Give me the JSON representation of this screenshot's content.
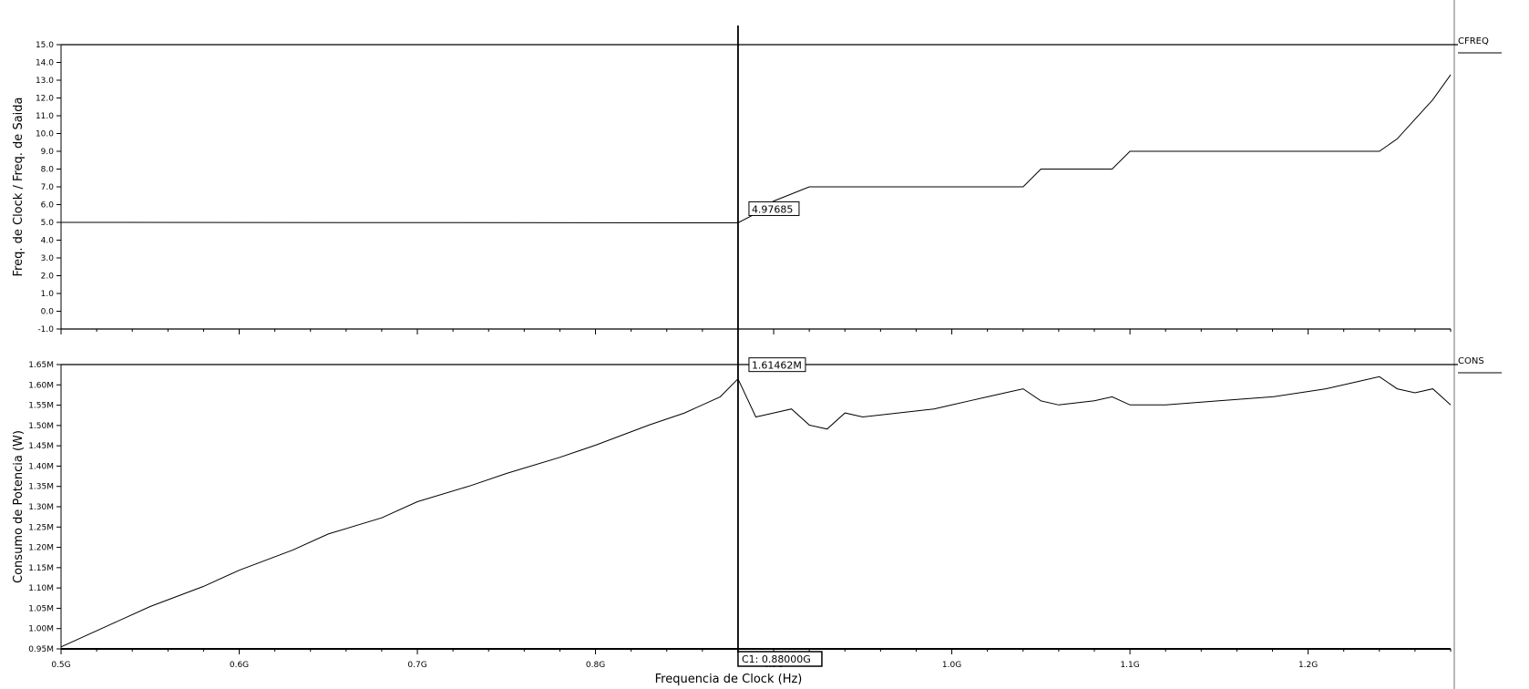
{
  "chart_data": [
    {
      "type": "line",
      "signal_name": "CFREQ",
      "ylabel": "Freq. de Clock / Freq. de Saida",
      "ylim": [
        -1.0,
        15.0
      ],
      "yticks": [
        "15.0",
        "14.0",
        "13.0",
        "12.0",
        "11.0",
        "10.0",
        "9.0",
        "8.0",
        "7.0",
        "6.0",
        "5.0",
        "4.0",
        "3.0",
        "2.0",
        "1.0",
        "0.0",
        "-1.0"
      ],
      "grid": false,
      "series": [
        {
          "x": [
            0.5,
            0.88,
            0.89,
            0.9,
            0.92,
            0.97,
            1.04,
            1.05,
            1.09,
            1.1,
            1.24,
            1.25,
            1.27,
            1.28
          ],
          "values": [
            5.0,
            4.97685,
            5.5,
            6.2,
            7.0,
            7.0,
            7.0,
            8.0,
            8.0,
            9.0,
            9.0,
            9.7,
            11.9,
            13.3
          ]
        }
      ],
      "marker_label": "4.97685"
    },
    {
      "type": "line",
      "signal_name": "CONS",
      "ylabel": "Consumo de Potencia (W)",
      "xlabel": "Frequencia de Clock (Hz)",
      "ylim": [
        0.945,
        1.65
      ],
      "yticks": [
        "1.65M",
        "1.60M",
        "1.55M",
        "1.50M",
        "1.45M",
        "1.40M",
        "1.35M",
        "1.30M",
        "1.25M",
        "1.20M",
        "1.15M",
        "1.10M",
        "1.05M",
        "1.00M",
        "0.95M"
      ],
      "xlim": [
        0.5,
        1.28
      ],
      "xticks": [
        "0.5G",
        "0.6G",
        "0.7G",
        "0.8G",
        "0.9G",
        "1.0G",
        "1.1G",
        "1.2G"
      ],
      "grid": false,
      "series": [
        {
          "x": [
            0.5,
            0.53,
            0.55,
            0.58,
            0.6,
            0.63,
            0.65,
            0.68,
            0.7,
            0.73,
            0.75,
            0.78,
            0.8,
            0.83,
            0.85,
            0.87,
            0.88,
            0.89,
            0.9,
            0.91,
            0.92,
            0.93,
            0.94,
            0.95,
            0.97,
            0.99,
            1.0,
            1.01,
            1.02,
            1.03,
            1.04,
            1.05,
            1.06,
            1.08,
            1.09,
            1.1,
            1.12,
            1.15,
            1.18,
            1.21,
            1.23,
            1.24,
            1.25,
            1.26,
            1.27,
            1.28
          ],
          "values": [
            0.95,
            1.01,
            1.05,
            1.1,
            1.14,
            1.19,
            1.23,
            1.27,
            1.31,
            1.35,
            1.38,
            1.42,
            1.45,
            1.5,
            1.53,
            1.57,
            1.61462,
            1.52,
            1.53,
            1.54,
            1.5,
            1.49,
            1.53,
            1.52,
            1.53,
            1.54,
            1.55,
            1.56,
            1.57,
            1.58,
            1.59,
            1.56,
            1.55,
            1.56,
            1.57,
            1.55,
            1.55,
            1.56,
            1.57,
            1.59,
            1.61,
            1.62,
            1.59,
            1.58,
            1.59,
            1.55
          ]
        }
      ],
      "marker_label": "1.61462M"
    }
  ],
  "cursor": {
    "x": 0.88,
    "label": "C1: 0.88000G"
  }
}
